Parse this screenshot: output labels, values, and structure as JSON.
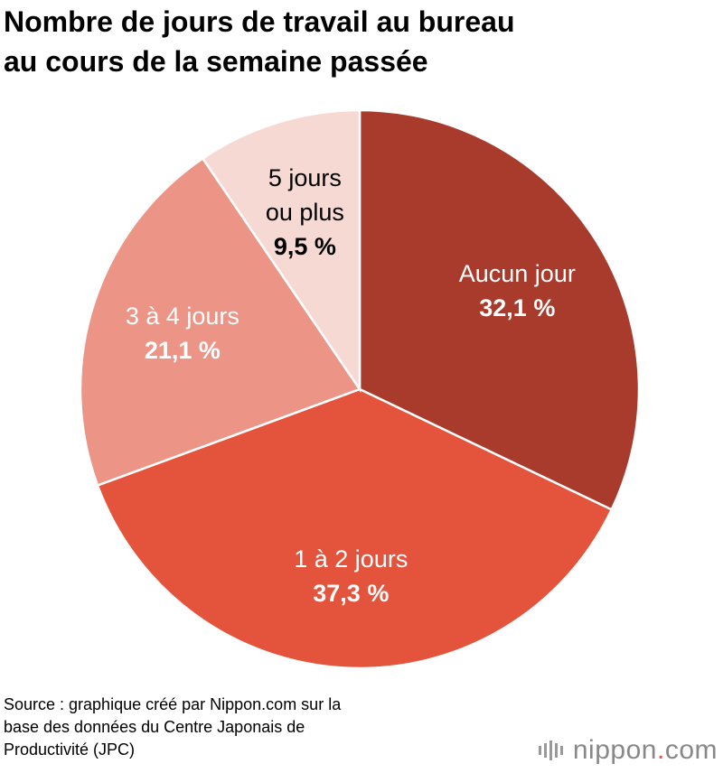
{
  "title": {
    "line1": "Nombre de jours de travail au bureau",
    "line2": "au cours de la semaine passée"
  },
  "chart_data": {
    "type": "pie",
    "title": "Nombre de jours de travail au bureau au cours de la semaine passée",
    "start": "12 o'clock, clockwise",
    "slices": [
      {
        "label": "Aucun jour",
        "label_lines": [
          "Aucun jour"
        ],
        "value": 32.1,
        "value_text": "32,1 %",
        "color": "#a83b2c",
        "text_color": "#ffffff"
      },
      {
        "label": "1 à 2 jours",
        "label_lines": [
          "1 à 2 jours"
        ],
        "value": 37.3,
        "value_text": "37,3 %",
        "color": "#e4533b",
        "text_color": "#ffffff"
      },
      {
        "label": "3 à 4 jours",
        "label_lines": [
          "3 à 4 jours"
        ],
        "value": 21.1,
        "value_text": "21,1 %",
        "color": "#ec9486",
        "text_color": "#ffffff"
      },
      {
        "label": "5 jours ou plus",
        "label_lines": [
          "5 jours",
          "ou plus"
        ],
        "value": 9.5,
        "value_text": "9,5 %",
        "color": "#f7d9d4",
        "text_color": "#000000"
      }
    ]
  },
  "source": {
    "line1": "Source : graphique créé par Nippon.com sur la",
    "line2": "base des données du Centre Japonais de",
    "line3": "Productivité (JPC)"
  },
  "logo": {
    "name": "nippon",
    "dot": ".",
    "suffix": "com"
  }
}
